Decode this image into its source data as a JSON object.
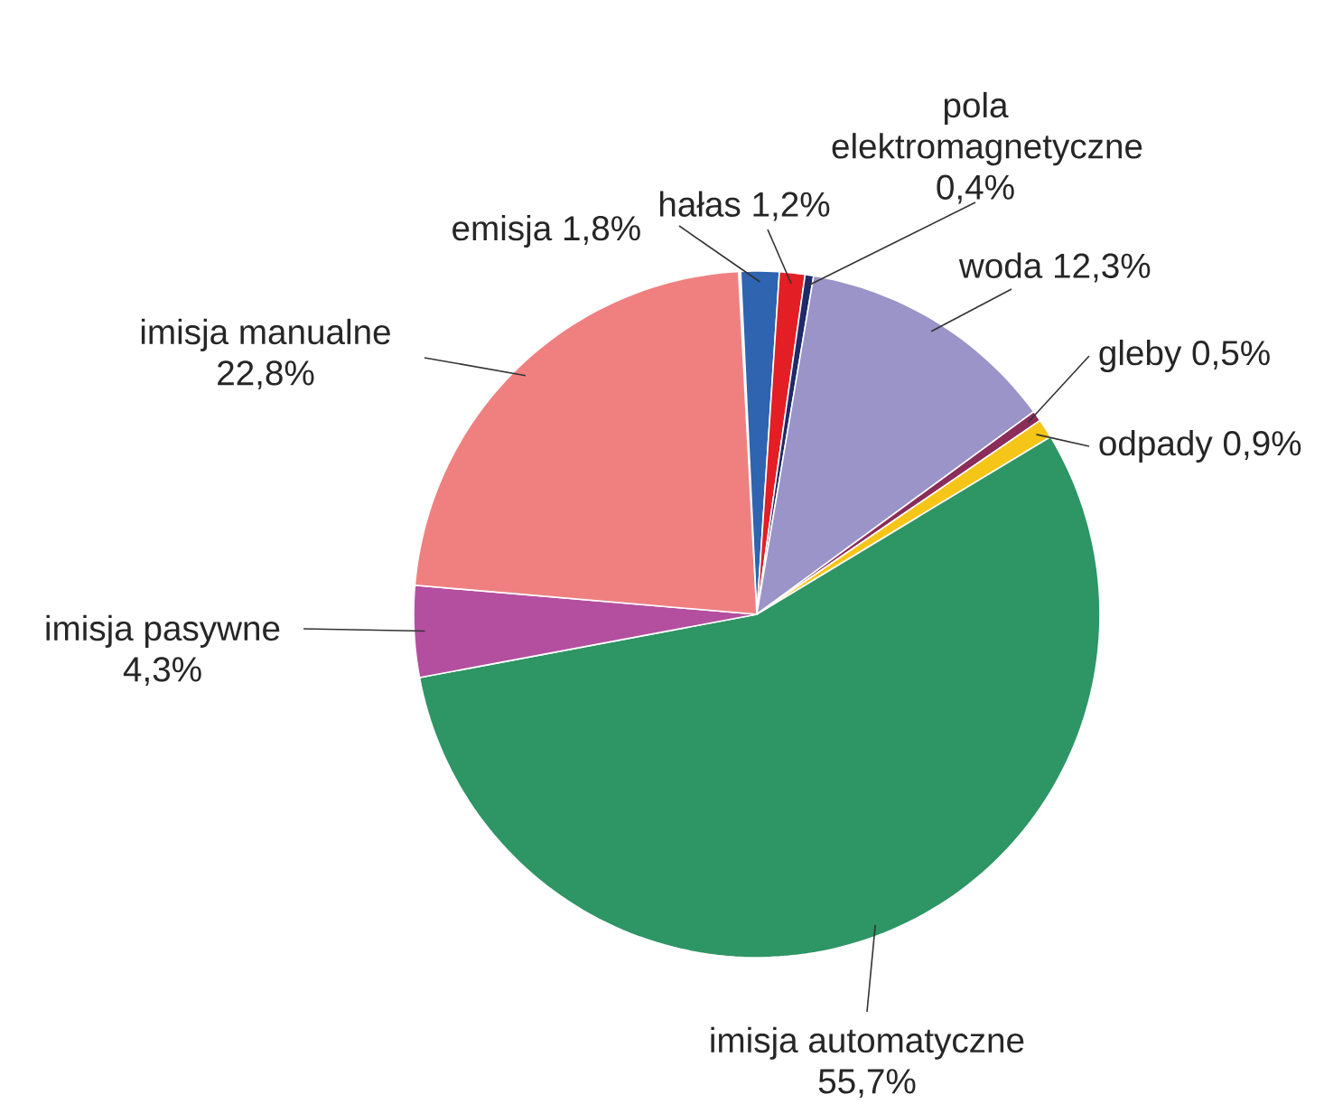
{
  "chart_data": {
    "type": "pie",
    "categories": [
      "emisja",
      "hałas",
      "pola elektromagnetyczne",
      "woda",
      "gleby",
      "odpady",
      "imisja automatyczne",
      "imisja pasywne",
      "imisja manualne"
    ],
    "values": [
      1.8,
      1.2,
      0.4,
      12.3,
      0.5,
      0.9,
      55.7,
      4.3,
      22.8
    ],
    "value_labels": [
      "1,8%",
      "1,2%",
      "0,4%",
      "12,3%",
      "0,5%",
      "0,9%",
      "55,7%",
      "4,3%",
      "22,8%"
    ],
    "colors": [
      "#2e64b0",
      "#e31e24",
      "#1f2a6b",
      "#9a94c8",
      "#8b2d5a",
      "#f5c518",
      "#2e9565",
      "#b44fa0",
      "#f08080"
    ]
  }
}
